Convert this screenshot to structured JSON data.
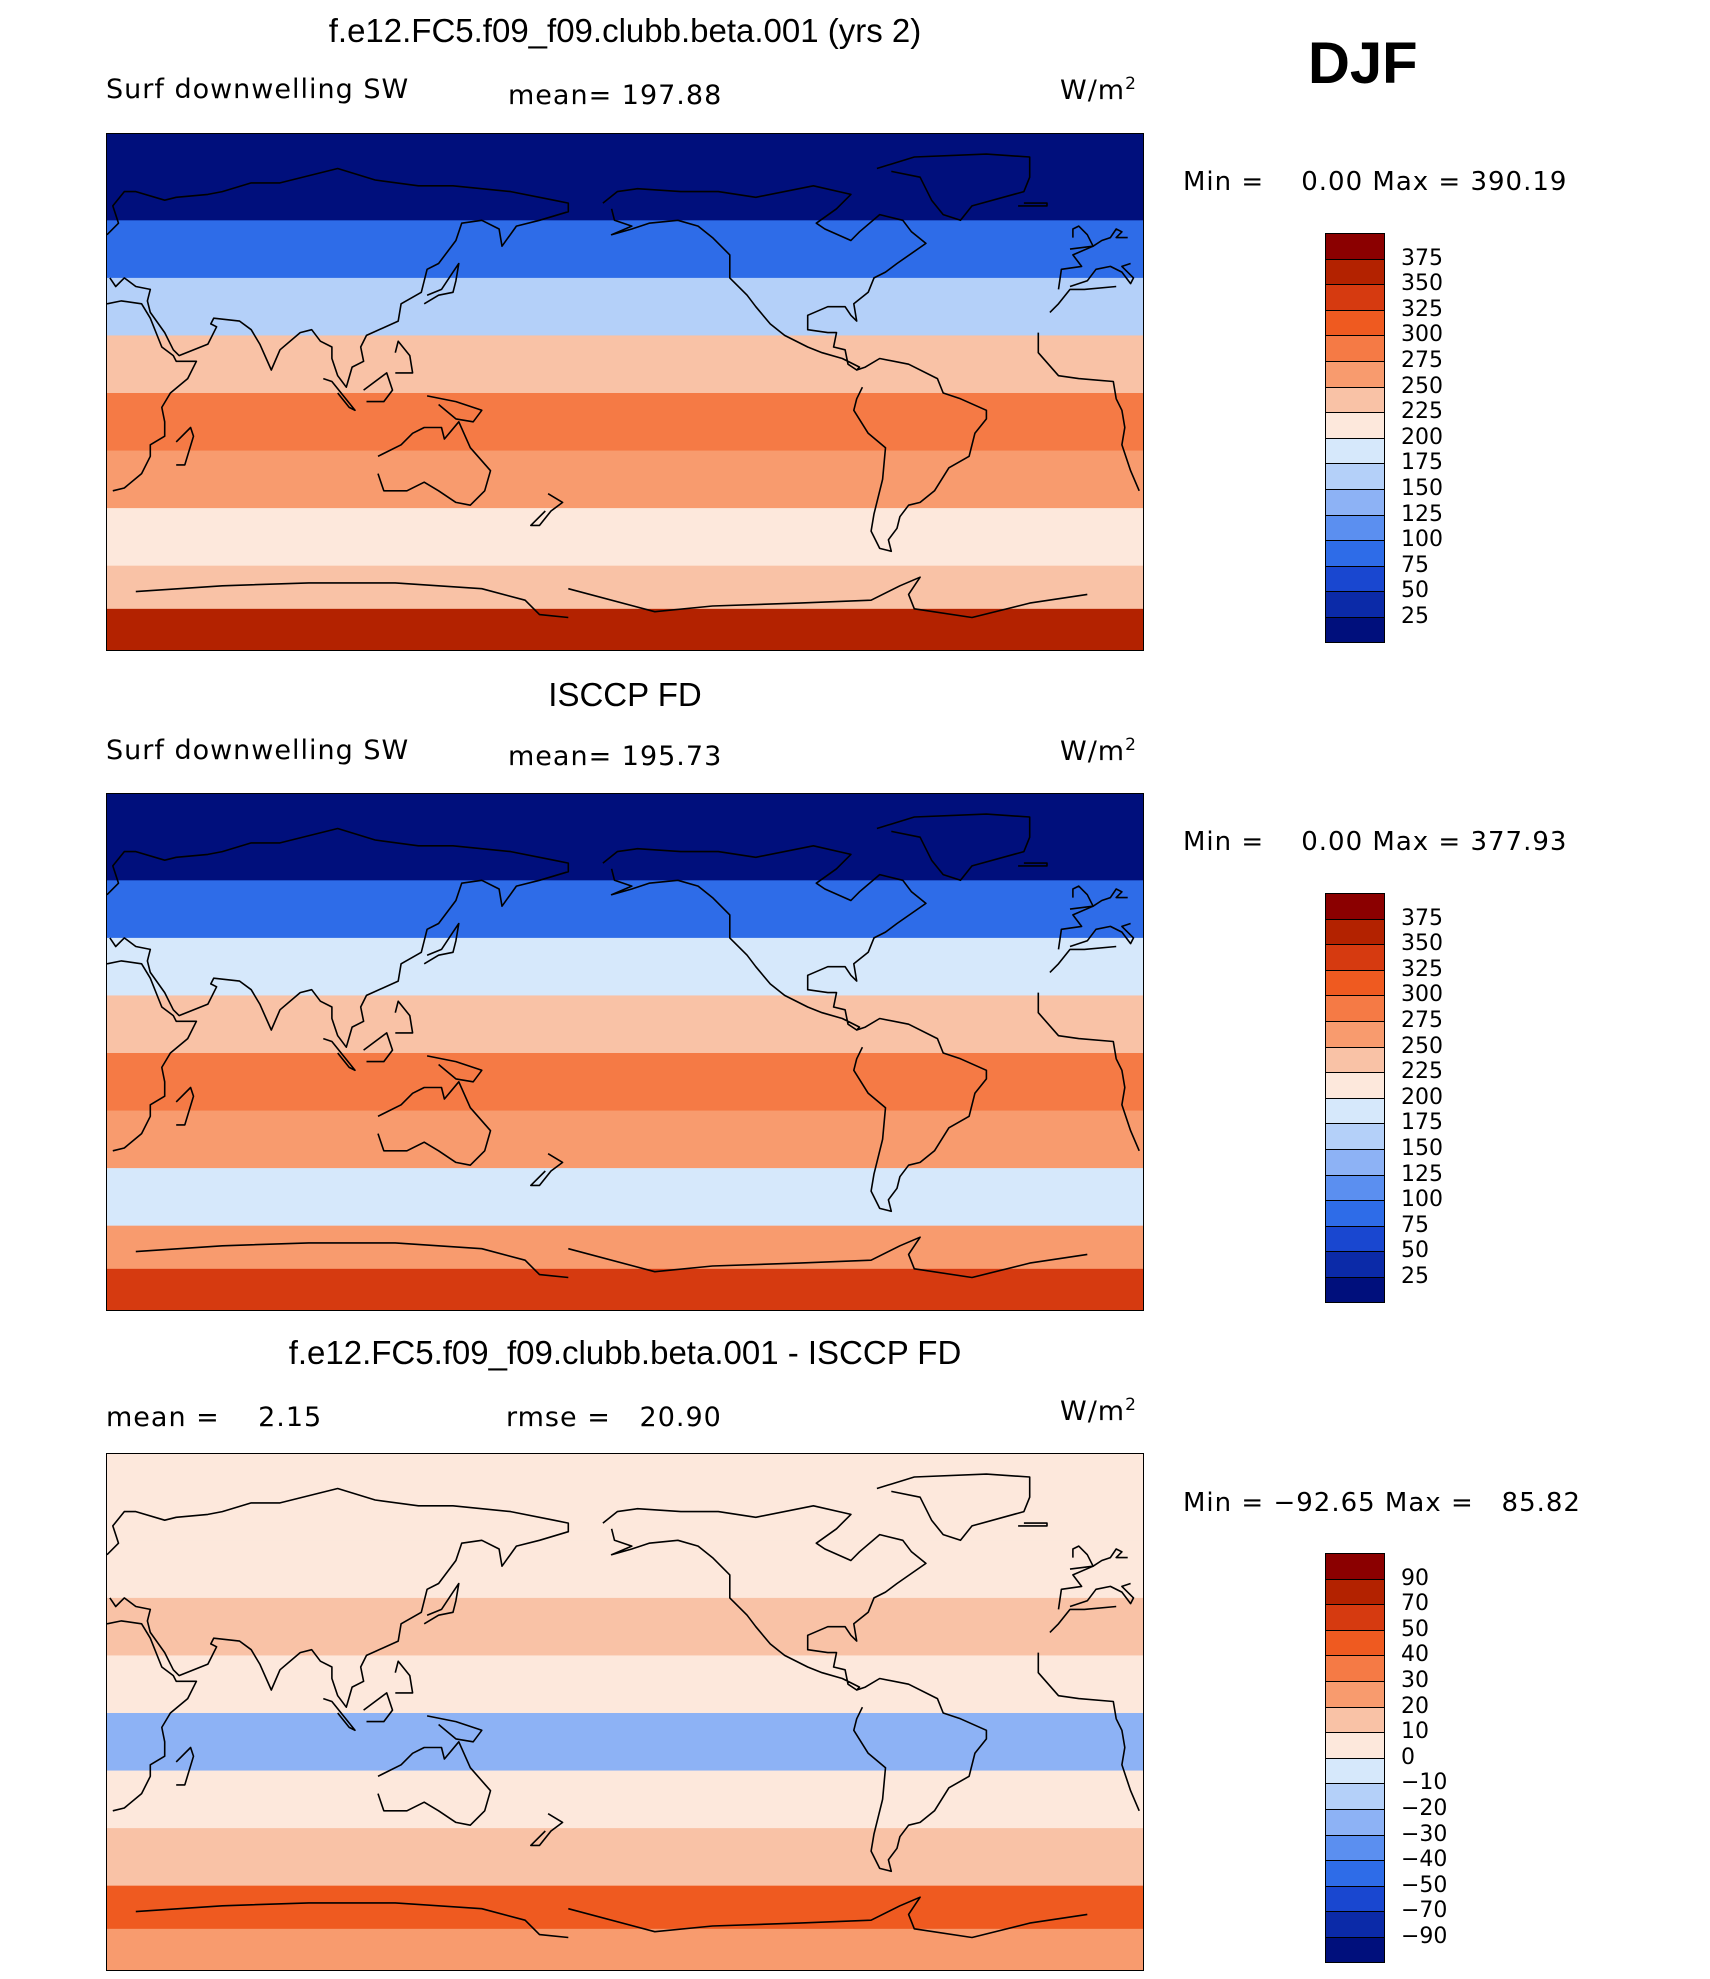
{
  "season": "DJF",
  "panels": [
    {
      "id": "model",
      "title": "f.e12.FC5.f09_f09.clubb.beta.001 (yrs 2)",
      "left_label": "Surf downwelling SW",
      "mid_label": "mean= 197.88",
      "mid2_label": "",
      "units_base": "W/m",
      "units_exp": "2",
      "min_max": "Min =    0.00 Max = 390.19",
      "colorbar": {
        "labels": [
          "375",
          "350",
          "325",
          "300",
          "275",
          "250",
          "225",
          "200",
          "175",
          "150",
          "125",
          "100",
          "75",
          "50",
          "25"
        ],
        "colors": [
          "#8b0000",
          "#b32200",
          "#d63a10",
          "#ef5a20",
          "#f57a45",
          "#f89b6e",
          "#f9c2a6",
          "#fde8dc",
          "#d6e8fb",
          "#b4d0f9",
          "#8db2f5",
          "#5b8ff0",
          "#2e6ce8",
          "#1947d0",
          "#0b2aa8",
          "#000f7c"
        ]
      },
      "chart_data": {
        "type": "heatmap",
        "variable": "Surf downwelling SW",
        "units": "W/m2",
        "mean": 197.88,
        "min": 0.0,
        "max": 390.19,
        "levels": [
          25,
          50,
          75,
          100,
          125,
          150,
          175,
          200,
          225,
          250,
          275,
          300,
          325,
          350,
          375
        ],
        "field_by_latitude_band": [
          {
            "lat_band": "90N-60N",
            "value": 10
          },
          {
            "lat_band": "60N-40N",
            "value": 80
          },
          {
            "lat_band": "40N-20N",
            "value": 170
          },
          {
            "lat_band": "20N-0",
            "value": 230
          },
          {
            "lat_band": "0-20S",
            "value": 285
          },
          {
            "lat_band": "20S-40S",
            "value": 270
          },
          {
            "lat_band": "40S-60S",
            "value": 200
          },
          {
            "lat_band": "60S-75S",
            "value": 235
          },
          {
            "lat_band": "75S-90S",
            "value": 355
          }
        ]
      }
    },
    {
      "id": "obs",
      "title": "ISCCP FD",
      "left_label": "Surf downwelling SW",
      "mid_label": "mean= 195.73",
      "mid2_label": "",
      "units_base": "W/m",
      "units_exp": "2",
      "min_max": "Min =    0.00 Max = 377.93",
      "colorbar": {
        "labels": [
          "375",
          "350",
          "325",
          "300",
          "275",
          "250",
          "225",
          "200",
          "175",
          "150",
          "125",
          "100",
          "75",
          "50",
          "25"
        ],
        "colors": [
          "#8b0000",
          "#b32200",
          "#d63a10",
          "#ef5a20",
          "#f57a45",
          "#f89b6e",
          "#f9c2a6",
          "#fde8dc",
          "#d6e8fb",
          "#b4d0f9",
          "#8db2f5",
          "#5b8ff0",
          "#2e6ce8",
          "#1947d0",
          "#0b2aa8",
          "#000f7c"
        ]
      },
      "chart_data": {
        "type": "heatmap",
        "variable": "Surf downwelling SW",
        "units": "W/m2",
        "mean": 195.73,
        "min": 0.0,
        "max": 377.93,
        "levels": [
          25,
          50,
          75,
          100,
          125,
          150,
          175,
          200,
          225,
          250,
          275,
          300,
          325,
          350,
          375
        ],
        "field_by_latitude_band": [
          {
            "lat_band": "90N-60N",
            "value": 10
          },
          {
            "lat_band": "60N-40N",
            "value": 80
          },
          {
            "lat_band": "40N-20N",
            "value": 175
          },
          {
            "lat_band": "20N-0",
            "value": 240
          },
          {
            "lat_band": "0-20S",
            "value": 280
          },
          {
            "lat_band": "20S-40S",
            "value": 265
          },
          {
            "lat_band": "40S-60S",
            "value": 190
          },
          {
            "lat_band": "60S-75S",
            "value": 260
          },
          {
            "lat_band": "75S-90S",
            "value": 345
          }
        ]
      }
    },
    {
      "id": "diff",
      "title": "f.e12.FC5.f09_f09.clubb.beta.001 - ISCCP FD",
      "left_label": "mean =    2.15",
      "mid_label": "",
      "mid2_label": "rmse =   20.90",
      "units_base": "W/m",
      "units_exp": "2",
      "min_max": "Min = −92.65 Max =   85.82",
      "colorbar": {
        "labels": [
          "90",
          "70",
          "50",
          "40",
          "30",
          "20",
          "10",
          "0",
          "−10",
          "−20",
          "−30",
          "−40",
          "−50",
          "−70",
          "−90"
        ],
        "colors": [
          "#8b0000",
          "#b32200",
          "#d63a10",
          "#ef5a20",
          "#f57a45",
          "#f89b6e",
          "#f9c2a6",
          "#fde8dc",
          "#d6e8fb",
          "#b4d0f9",
          "#8db2f5",
          "#5b8ff0",
          "#2e6ce8",
          "#1947d0",
          "#0b2aa8",
          "#000f7c"
        ]
      },
      "chart_data": {
        "type": "heatmap",
        "variable": "Surf downwelling SW difference",
        "units": "W/m2",
        "mean": 2.15,
        "rmse": 20.9,
        "min": -92.65,
        "max": 85.82,
        "levels": [
          -90,
          -70,
          -50,
          -40,
          -30,
          -20,
          -10,
          0,
          10,
          20,
          30,
          40,
          50,
          70,
          90
        ],
        "field_by_latitude_band": [
          {
            "lat_band": "90N-60N",
            "value": 5
          },
          {
            "lat_band": "60N-40N",
            "value": 8
          },
          {
            "lat_band": "40N-20N",
            "value": 15
          },
          {
            "lat_band": "20N-0",
            "value": 5
          },
          {
            "lat_band": "0-20S",
            "value": -25
          },
          {
            "lat_band": "20S-40S",
            "value": 8
          },
          {
            "lat_band": "40S-60S",
            "value": 12
          },
          {
            "lat_band": "60S-75S",
            "value": 40
          },
          {
            "lat_band": "75S-90S",
            "value": 20
          }
        ]
      }
    }
  ]
}
